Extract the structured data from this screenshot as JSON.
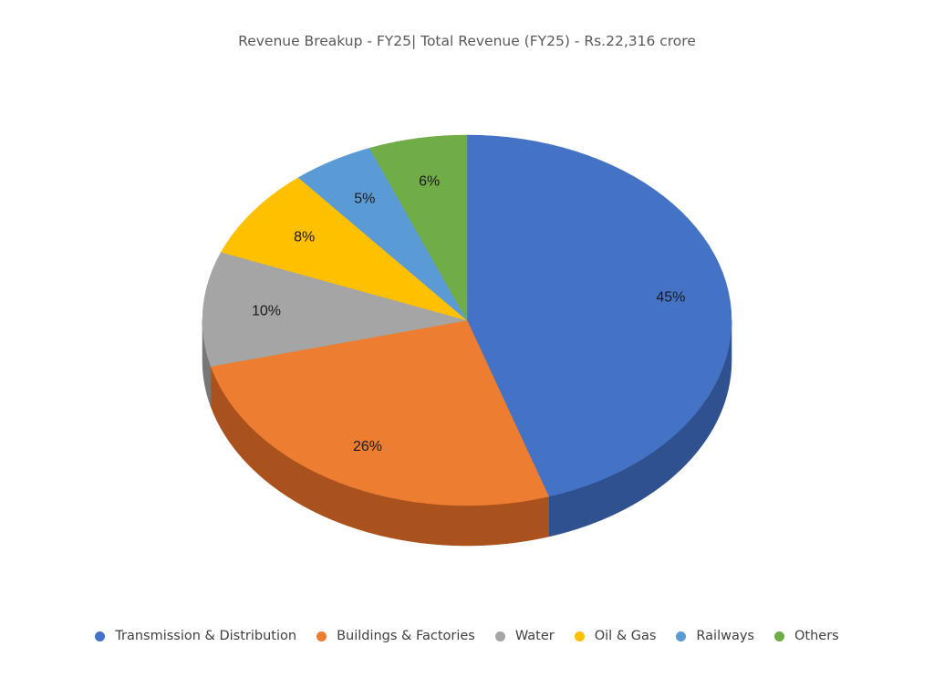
{
  "chart_data": {
    "type": "pie",
    "title": "Revenue Breakup - FY25| Total Revenue (FY25) - Rs.22,316 crore",
    "style": "3d",
    "legend_position": "bottom",
    "categories": [
      "Transmission & Distribution",
      "Buildings & Factories",
      "Water",
      "Oil & Gas",
      "Railways",
      "Others"
    ],
    "values": [
      45,
      26,
      10,
      8,
      5,
      6
    ],
    "labels": [
      "45%",
      "26%",
      "10%",
      "8%",
      "5%",
      "6%"
    ],
    "colors": [
      "#4472c4",
      "#ed7d31",
      "#a5a5a5",
      "#ffc000",
      "#5b9bd5",
      "#70ad47"
    ],
    "side_colors": [
      "#2f5190",
      "#a9521e",
      "#777777",
      "#b38600",
      "#3b6f9c",
      "#4c7a30"
    ]
  }
}
